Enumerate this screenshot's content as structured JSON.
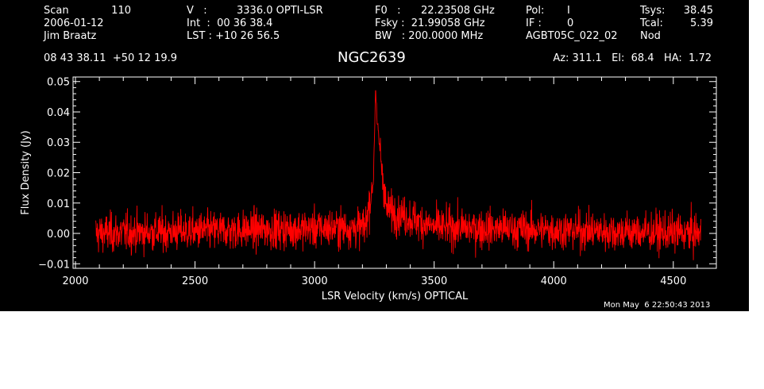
{
  "header": {
    "scan_label": "Scan",
    "scan_value": "110",
    "date": "2006-01-12",
    "observer": "Jim Braatz",
    "coords": "08 43 38.11  +50 12 19.9",
    "v_label": "V   :",
    "v_value": "3336.0 OPTI-LSR",
    "int_line": "Int  :  00 36 38.4",
    "lst_line": "LST : +10 26 56.5",
    "f0_label": "F0   :",
    "f0_value": "22.23508 GHz",
    "fsky_line": "Fsky :  21.99058 GHz",
    "bw_line": "BW   : 200.0000 MHz",
    "pol_label": "Pol:",
    "pol_value": "I",
    "if_label": "IF :",
    "if_value": "0",
    "project": "AGBT05C_022_02",
    "tsys_label": "Tsys:",
    "tsys_value": "38.45",
    "tcal_label": "Tcal:",
    "tcal_value": "5.39",
    "mode": "Nod",
    "source": "NGC2639",
    "az_el_ha": "Az: 311.1   El:  68.4   HA:  1.72"
  },
  "timestamp": "Mon May  6 22:50:43 2013",
  "chart_data": {
    "type": "line",
    "xlabel": "LSR Velocity (km/s) OPTICAL",
    "ylabel": "Flux Density (Jy)",
    "xlim": [
      1990,
      4680
    ],
    "ylim": [
      -0.0115,
      0.0515
    ],
    "xticks": [
      2000,
      2500,
      3000,
      3500,
      4000,
      4500
    ],
    "yticks": [
      -0.01,
      0.0,
      0.01,
      0.02,
      0.03,
      0.04,
      0.05
    ],
    "ytick_labels": [
      "−0.01",
      "0.00",
      "0.01",
      "0.02",
      "0.03",
      "0.04",
      "0.05"
    ],
    "x_range": [
      2085,
      4615
    ],
    "noise_rms": 0.0032,
    "baseline": 0.0,
    "series": [
      {
        "color": "#ff0000",
        "features": [
          {
            "kind": "baseline-envelope",
            "x": 2085,
            "y": 0.0
          },
          {
            "kind": "line-onset",
            "x": 3210,
            "y": 0.002
          },
          {
            "kind": "shoulder",
            "x": 3230,
            "y": 0.01
          },
          {
            "kind": "broad-component",
            "x": 3245,
            "y": 0.016
          },
          {
            "kind": "peak",
            "x": 3255,
            "y": 0.047
          },
          {
            "kind": "secondary-spike",
            "x": 3262,
            "y": 0.036
          },
          {
            "kind": "wing",
            "x": 3300,
            "y": 0.008
          },
          {
            "kind": "wing",
            "x": 3400,
            "y": 0.005
          },
          {
            "kind": "wing",
            "x": 3500,
            "y": 0.002
          },
          {
            "kind": "baseline-envelope",
            "x": 4615,
            "y": 0.0
          }
        ]
      }
    ]
  },
  "colors": {
    "background": "#000000",
    "foreground": "#ffffff",
    "trace": "#ff0000"
  }
}
